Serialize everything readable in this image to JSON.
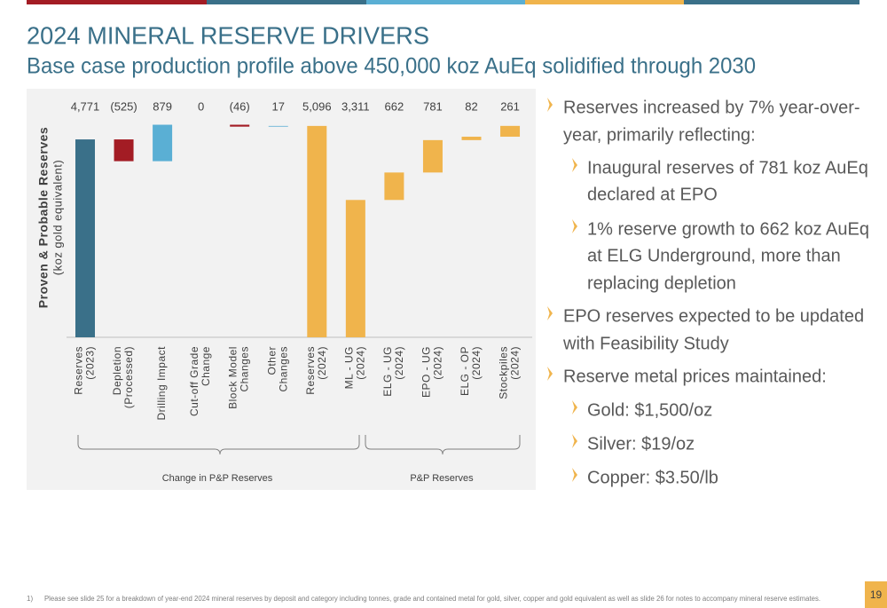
{
  "header": {
    "title": "2024 MINERAL RESERVE DRIVERS",
    "subtitle": "Base case production profile above 450,000 koz AuEq solidified through 2030"
  },
  "chart_data": {
    "type": "waterfall",
    "y_label": [
      "Proven & Probable Reserves",
      "(koz gold equivalent)"
    ],
    "categories": [
      [
        "Reserves",
        "(2023)"
      ],
      [
        "Depletion",
        "(Processed)"
      ],
      [
        "Drilling Impact"
      ],
      [
        "Cut-off Grade",
        "Change"
      ],
      [
        "Block Model",
        "Changes"
      ],
      [
        "Other",
        "Changes"
      ],
      [
        "Reserves",
        "(2024)"
      ],
      [
        "ML - UG",
        "(2024)"
      ],
      [
        "ELG - UG",
        "(2024)"
      ],
      [
        "EPO - UG",
        "(2024)"
      ],
      [
        "ELG - OP",
        "(2024)"
      ],
      [
        "Stockpiles",
        "(2024)"
      ]
    ],
    "values": [
      4771,
      -525,
      879,
      0,
      -46,
      17,
      5096,
      3311,
      662,
      781,
      82,
      261
    ],
    "value_labels": [
      "4,771",
      "(525)",
      "879",
      "0",
      "(46)",
      "17",
      "5,096",
      "3,311",
      "662",
      "781",
      "82",
      "261"
    ],
    "measure": [
      "absolute",
      "relative",
      "relative",
      "relative",
      "relative",
      "relative",
      "absolute",
      "absolute",
      "relative",
      "relative",
      "relative",
      "relative"
    ],
    "colors": [
      "#3a7089",
      "#a31c24",
      "#5aafd4",
      "#5aafd4",
      "#a31c24",
      "#5aafd4",
      "#f0b44c",
      "#f0b44c",
      "#f0b44c",
      "#f0b44c",
      "#f0b44c",
      "#f0b44c"
    ],
    "ylim": [
      0,
      5500
    ],
    "groups": [
      "Change in P&P Reserves",
      "P&P Reserves"
    ]
  },
  "bullets": [
    {
      "level": 1,
      "lines": [
        "Reserves increased by 7% year-over-",
        "year, primarily reflecting:"
      ]
    },
    {
      "level": 2,
      "lines": [
        "Inaugural reserves of 781 koz AuEq",
        "declared at EPO"
      ]
    },
    {
      "level": 2,
      "lines": [
        "1% reserve growth to 662 koz AuEq",
        "at ELG Underground, more than",
        "replacing depletion"
      ]
    },
    {
      "level": 1,
      "lines": [
        "EPO reserves expected to be updated",
        "with Feasibility Study"
      ]
    },
    {
      "level": 1,
      "lines": [
        "Reserve metal prices maintained:"
      ]
    },
    {
      "level": 2,
      "lines": [
        "Gold: $1,500/oz"
      ]
    },
    {
      "level": 2,
      "lines": [
        "Silver: $19/oz"
      ]
    },
    {
      "level": 2,
      "lines": [
        "Copper: $3.50/lb"
      ]
    }
  ],
  "footnote": {
    "number": "1)",
    "text": "Please see slide 25 for a breakdown of year-end 2024 mineral reserves by deposit and category including tonnes, grade and contained metal for gold, silver, copper and gold equivalent as well as slide 26 for notes to accompany mineral reserve estimates."
  },
  "page_number": "19"
}
